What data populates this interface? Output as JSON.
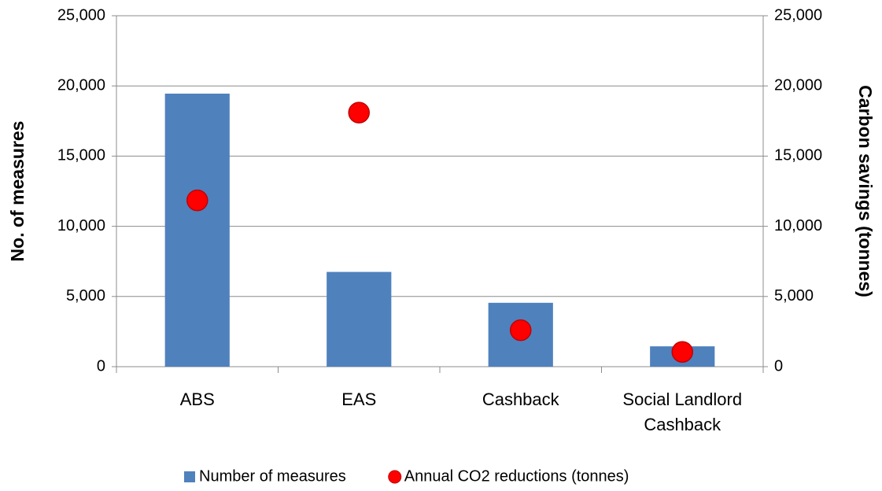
{
  "chart_data": {
    "type": "bar",
    "categories": [
      "ABS",
      "EAS",
      "Cashback",
      "Social Landlord Cashback"
    ],
    "series": [
      {
        "name": "Number of measures",
        "type": "bar",
        "color": "#4f81bd",
        "values": [
          19450,
          6750,
          4550,
          1450
        ]
      },
      {
        "name": "Annual CO2 reductions (tonnes)",
        "type": "scatter",
        "axis": "y2",
        "color": "#ff0000",
        "values": [
          11850,
          18100,
          2600,
          1050
        ]
      }
    ],
    "y_label": "No. of measures",
    "y2_label": "Carbon savings (tonnes)",
    "ylim": [
      0,
      25000
    ],
    "yticks": [
      0,
      {
        "value": 5000,
        "label": "5,000"
      },
      {
        "value": 10000,
        "label": "10,000"
      },
      {
        "value": 15000,
        "label": "15,000"
      },
      {
        "value": 20000,
        "label": "20,000"
      },
      {
        "value": 25000,
        "label": "25,000"
      }
    ],
    "y2lim": [
      0,
      25000
    ],
    "y2ticks": [
      0,
      {
        "value": 5000,
        "label": "5,000"
      },
      {
        "value": 10000,
        "label": "10,000"
      },
      {
        "value": 15000,
        "label": "15,000"
      },
      {
        "value": 20000,
        "label": "20,000"
      },
      {
        "value": 25000,
        "label": "25,000"
      }
    ],
    "grid": true,
    "legend": "bottom"
  }
}
